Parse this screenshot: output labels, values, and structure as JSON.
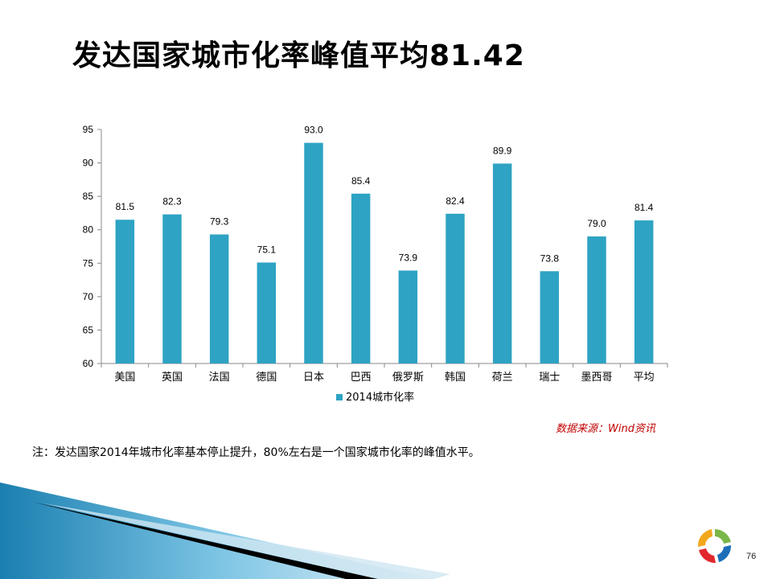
{
  "page": {
    "title": "发达国家城市化率峰值平均81.42",
    "source": "数据来源：Wind资讯",
    "note": "注：发达国家2014年城市化率基本停止提升，80%左右是一个国家城市化率的峰值水平。",
    "page_number": "76"
  },
  "colors": {
    "bar": "#2ea3c3",
    "source_text": "#c00000"
  },
  "chart_data": {
    "type": "bar",
    "categories": [
      "美国",
      "英国",
      "法国",
      "德国",
      "日本",
      "巴西",
      "俄罗斯",
      "韩国",
      "荷兰",
      "瑞士",
      "墨西哥",
      "平均"
    ],
    "series": [
      {
        "name": "2014城市化率",
        "values": [
          81.5,
          82.3,
          79.3,
          75.1,
          93.0,
          85.4,
          73.9,
          82.4,
          89.9,
          73.8,
          79.0,
          81.4
        ],
        "labels": [
          "81.5",
          "82.3",
          "79.3",
          "75.1",
          "93.0",
          "85.4",
          "73.9",
          "82.4",
          "89.9",
          "73.8",
          "79.0",
          "81.4"
        ]
      }
    ],
    "yticks": [
      "60",
      "65",
      "70",
      "75",
      "80",
      "85",
      "90",
      "95"
    ],
    "ylim": [
      60,
      95
    ],
    "grid": false,
    "legend_position": "bottom"
  }
}
